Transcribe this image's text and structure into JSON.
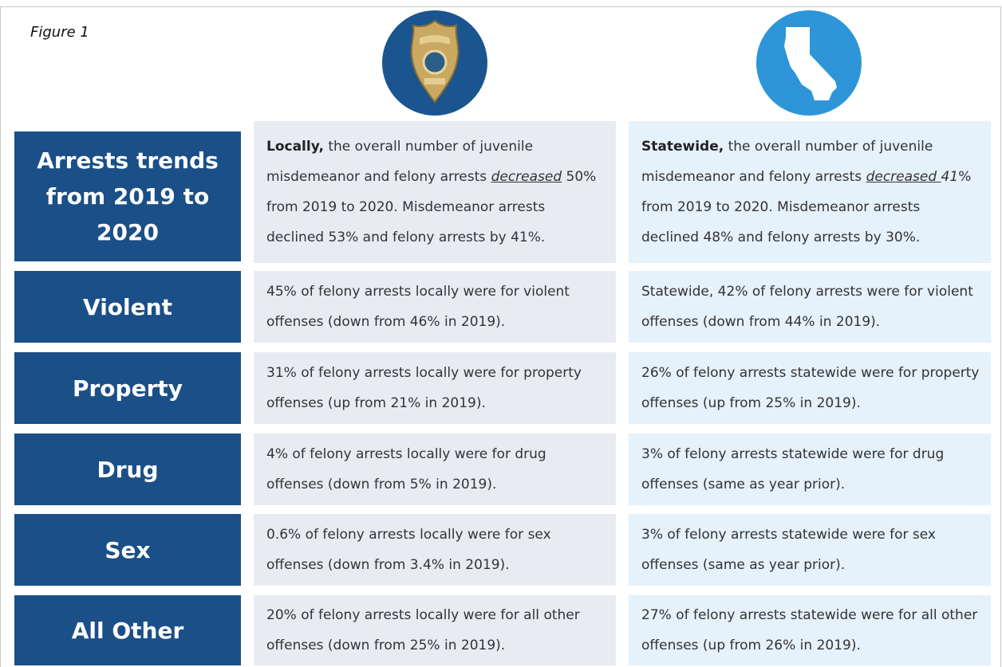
{
  "figure_label": "Figure 1",
  "rows": [
    {
      "label": "Arrests trends from 2019 to 2020",
      "local": [
        {
          "text": "Locally,",
          "style": "bold"
        },
        {
          "text": " the overall number of juvenile misdemeanor and felony arrests "
        },
        {
          "text": "decreased",
          "style": "underline-italic"
        },
        {
          "text": " 50% from 2019 to 2020. Misdemeanor arrests declined  53% and felony arrests by 41%."
        }
      ],
      "statewide": [
        {
          "text": "Statewide,",
          "style": "bold"
        },
        {
          "text": " the overall number of juvenile misdemeanor and felony arrests "
        },
        {
          "text": "decreased ",
          "style": "underline-italic"
        },
        {
          "text": "41",
          "style": "italic"
        },
        {
          "text": "% from 2019 to 2020. Misdemeanor arrests declined 48% and felony arrests by 30%."
        }
      ]
    },
    {
      "label": "Violent",
      "local": [
        {
          "text": "45% of felony arrests locally were for violent offenses (down from 46% in 2019)."
        }
      ],
      "statewide": [
        {
          "text": "Statewide, 42% of felony arrests were for violent offenses (down from 44% in 2019)."
        }
      ]
    },
    {
      "label": "Property",
      "local": [
        {
          "text": "31% of felony arrests locally were for property offenses  (up from 21% in 2019)."
        }
      ],
      "statewide": [
        {
          "text": "26% of felony arrests statewide were for property offenses (up from 25% in 2019)."
        }
      ]
    },
    {
      "label": "Drug",
      "local": [
        {
          "text": "4% of felony arrests locally were for drug offenses (down from 5% in 2019)."
        }
      ],
      "statewide": [
        {
          "text": "3% of felony arrests statewide were for drug offenses (same as year prior)."
        }
      ]
    },
    {
      "label": "Sex",
      "local": [
        {
          "text": "0.6% of felony arrests locally were for sex offenses (down from 3.4% in 2019)."
        }
      ],
      "statewide": [
        {
          "text": "3% of felony arrests statewide were for sex offenses (same as year prior)."
        }
      ]
    },
    {
      "label": "All Other",
      "local": [
        {
          "text": "20% of felony arrests locally were for all other offenses (down from 25% in 2019)."
        }
      ],
      "statewide": [
        {
          "text": "27% of felony arrests statewide were for all other offenses  (up from 26% in 2019)."
        }
      ]
    }
  ]
}
